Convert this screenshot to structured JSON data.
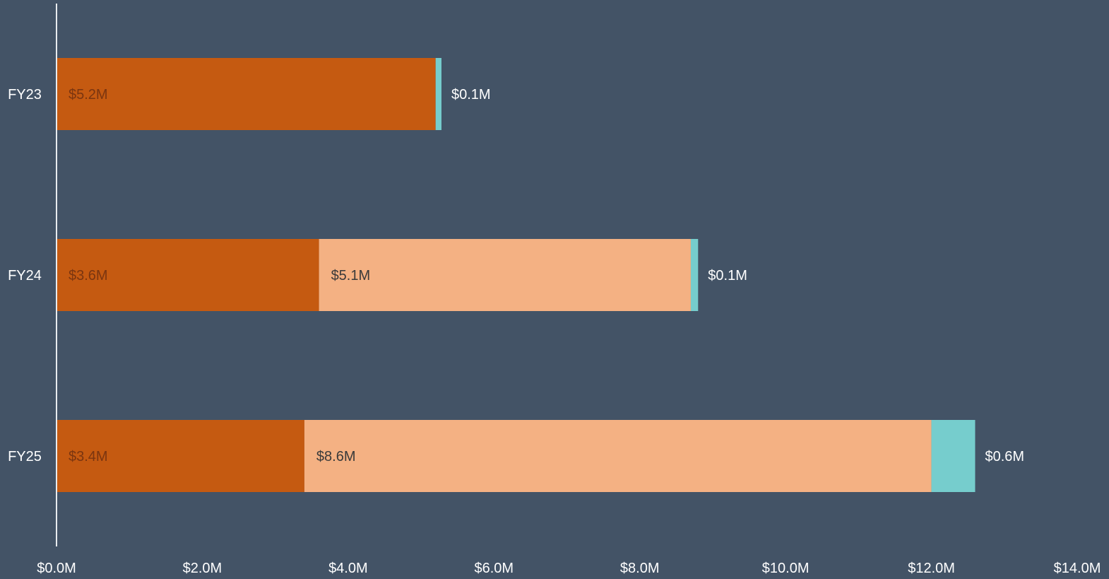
{
  "colors": {
    "background": "#435366",
    "axis_line": "#e8ecef",
    "tick_text": "#ffffff"
  },
  "chart_data": {
    "type": "bar",
    "orientation": "horizontal",
    "stacked": true,
    "title": "",
    "xlabel": "",
    "ylabel": "",
    "categories": [
      "FY23",
      "FY24",
      "FY25"
    ],
    "xlim": [
      0,
      14
    ],
    "x_ticks": [
      0,
      2,
      4,
      6,
      8,
      10,
      12,
      14
    ],
    "x_tick_labels": [
      "$0.0M",
      "$2.0M",
      "$4.0M",
      "$6.0M",
      "$8.0M",
      "$10.0M",
      "$12.0M",
      "$14.0M"
    ],
    "grid": false,
    "legend": "none",
    "series": [
      {
        "color": "#c55a11",
        "label_color": "#7a3510",
        "label_position": "inside",
        "values": [
          5.2,
          3.6,
          3.4
        ],
        "labels": [
          "$5.2M",
          "$3.6M",
          "$3.4M"
        ]
      },
      {
        "color": "#f4b183",
        "label_color": "#3a3a3a",
        "label_position": "inside",
        "values": [
          0,
          5.1,
          8.6
        ],
        "labels": [
          "",
          "$5.1M",
          "$8.6M"
        ]
      },
      {
        "color": "#76cdcd",
        "label_color": "#ffffff",
        "label_position": "outside",
        "values": [
          0.08,
          0.1,
          0.6
        ],
        "labels": [
          "$0.1M",
          "$0.1M",
          "$0.6M"
        ]
      }
    ]
  }
}
